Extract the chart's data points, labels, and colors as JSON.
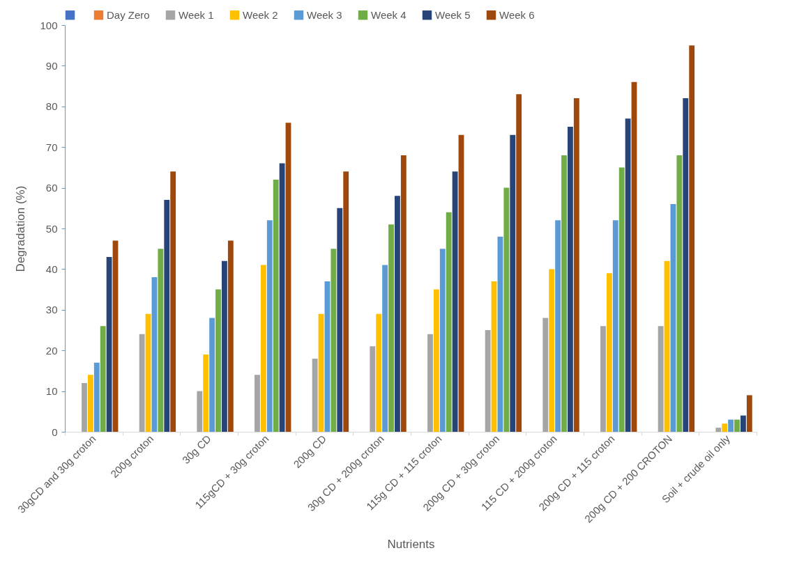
{
  "chart_data": {
    "type": "bar",
    "xlabel": "Nutrients",
    "ylabel": "Degradation (%)",
    "categories": [
      "30gCD and 30g croton",
      "200g croton",
      "30g CD",
      "115gCD + 30g croton",
      "200g CD",
      "30g CD + 200g croton",
      "115g CD + 115 croton",
      "200g CD + 30g croton",
      "115 CD + 200g croton",
      "200g CD + 115 croton",
      "200g CD + 200 CROTON",
      "Soil + crude oil only"
    ],
    "series": [
      {
        "color": "#4472c4",
        "values": [
          0,
          0,
          0,
          0,
          0,
          0,
          0,
          0,
          0,
          0,
          0,
          0
        ]
      },
      {
        "name": "Day Zero",
        "color": "#ed7d31",
        "values": [
          0,
          0,
          0,
          0,
          0,
          0,
          0,
          0,
          0,
          0,
          0,
          0
        ]
      },
      {
        "name": "Week 1",
        "color": "#a5a5a5",
        "values": [
          12,
          24,
          10,
          14,
          18,
          21,
          24,
          25,
          28,
          26,
          26,
          1
        ]
      },
      {
        "name": "Week 2",
        "color": "#ffc000",
        "values": [
          14,
          29,
          19,
          41,
          29,
          29,
          35,
          37,
          40,
          39,
          42,
          2
        ]
      },
      {
        "name": "Week 3",
        "color": "#5b9bd5",
        "values": [
          17,
          38,
          28,
          52,
          37,
          41,
          45,
          48,
          52,
          52,
          56,
          3
        ]
      },
      {
        "name": "Week 4",
        "color": "#70ad47",
        "values": [
          26,
          45,
          35,
          62,
          45,
          51,
          54,
          60,
          68,
          65,
          68,
          3
        ]
      },
      {
        "name": "Week 5",
        "color": "#264478",
        "values": [
          43,
          57,
          42,
          66,
          55,
          58,
          64,
          73,
          75,
          77,
          82,
          4
        ]
      },
      {
        "name": "Week 6",
        "color": "#9e480e",
        "values": [
          47,
          64,
          47,
          76,
          64,
          68,
          73,
          83,
          82,
          86,
          95,
          9
        ]
      }
    ],
    "ylim": [
      0,
      100
    ],
    "yticks": [
      0,
      10,
      20,
      30,
      40,
      50,
      60,
      70,
      80,
      90,
      100
    ],
    "grid": false,
    "legend": "top"
  }
}
